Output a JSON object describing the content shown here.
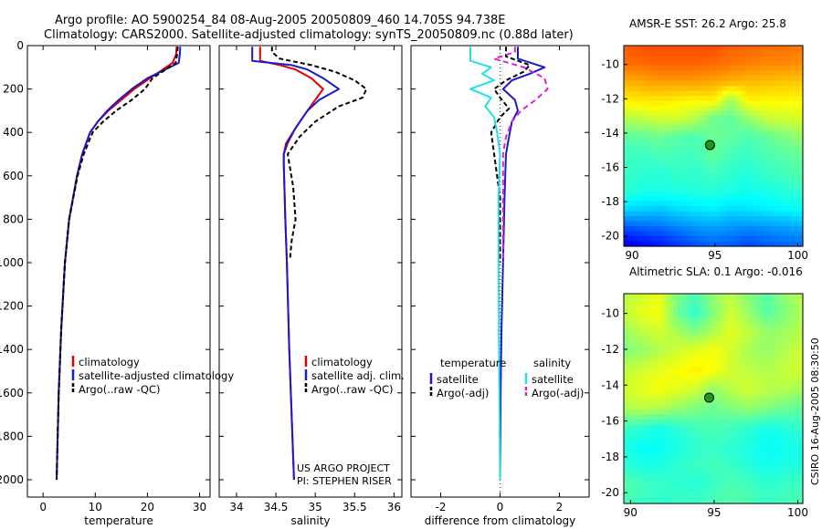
{
  "title": {
    "line1": "Argo profile: AO 5900254_84 08-Aug-2005 20050809_460 14.705S 94.738E",
    "line2": "Climatology: CARS2000. Satellite-adjusted climatology: synTS_20050809.nc (0.88d later)"
  },
  "stamp": "CSIRO 16-Aug-2005 08:30:50",
  "colors": {
    "climatology": "#e00000",
    "satellite": "#1a1acc",
    "argo": "#000000",
    "sal_satellite": "#22e0e8",
    "sal_argo": "#e020d0"
  },
  "chart_data": [
    {
      "type": "line",
      "name": "temperature",
      "xlabel": "temperature",
      "xlim": [
        -3,
        32
      ],
      "ylim": [
        2080,
        0
      ],
      "xticks": [
        "0",
        "10",
        "20",
        "30"
      ],
      "xtick_values": [
        0,
        10,
        20,
        30
      ],
      "yticks": [
        "0",
        "200",
        "400",
        "600",
        "800",
        "1000",
        "1200",
        "1400",
        "1600",
        "1800",
        "2000"
      ],
      "ytick_values": [
        0,
        200,
        400,
        600,
        800,
        1000,
        1200,
        1400,
        1600,
        1800,
        2000
      ],
      "legend": [
        "climatology",
        "satellite-adjusted climatology",
        "Argo(..raw -QC)"
      ],
      "series": [
        {
          "name": "climatology",
          "color": "#e00000",
          "dash": "",
          "x": [
            25.6,
            25.5,
            24.8,
            20.5,
            17.5,
            15.0,
            12.5,
            10.5,
            9.0,
            7.5,
            6.5,
            5.0,
            4.2,
            3.5,
            3.0,
            2.6
          ],
          "y": [
            5,
            40,
            80,
            150,
            200,
            250,
            300,
            350,
            400,
            500,
            600,
            800,
            1000,
            1300,
            1600,
            2000
          ]
        },
        {
          "name": "satellite-adjusted climatology",
          "color": "#1a1acc",
          "dash": "",
          "x": [
            26.3,
            26.2,
            26.0,
            20.0,
            17.0,
            14.5,
            12.3,
            10.5,
            9.0,
            7.5,
            6.5,
            5.0,
            4.2,
            3.5,
            3.0,
            2.6
          ],
          "y": [
            5,
            40,
            80,
            150,
            200,
            250,
            300,
            350,
            400,
            500,
            600,
            800,
            1000,
            1300,
            1600,
            2000
          ]
        },
        {
          "name": "Argo(..raw -QC)",
          "color": "#000000",
          "dash": "5,3",
          "x": [
            25.8,
            25.7,
            25.4,
            21.0,
            19.5,
            17.0,
            14.0,
            11.5,
            9.5,
            7.8,
            6.6,
            5.0,
            4.2,
            3.5,
            3.0,
            2.6
          ],
          "y": [
            5,
            40,
            80,
            150,
            200,
            250,
            300,
            350,
            400,
            500,
            600,
            800,
            1000,
            1300,
            1600,
            2000
          ]
        }
      ]
    },
    {
      "type": "line",
      "name": "salinity",
      "xlabel": "salinity",
      "xlim": [
        33.78,
        36.1
      ],
      "ylim": [
        2080,
        0
      ],
      "xticks": [
        "34",
        "34.5",
        "35",
        "35.5",
        "36"
      ],
      "xtick_values": [
        34,
        34.5,
        35,
        35.5,
        36
      ],
      "legend": [
        "climatology",
        "satellite adj. clim.",
        "Argo(..raw -QC)"
      ],
      "annotation": [
        "US ARGO PROJECT",
        "PI: STEPHEN RISER"
      ],
      "series": [
        {
          "name": "climatology",
          "color": "#e00000",
          "dash": "",
          "x": [
            34.3,
            34.3,
            34.55,
            34.75,
            34.95,
            35.1,
            35.0,
            34.9,
            34.75,
            34.65,
            34.6,
            34.6,
            34.62,
            34.64,
            34.67,
            34.7,
            34.73
          ],
          "y": [
            5,
            70,
            90,
            110,
            150,
            200,
            250,
            300,
            380,
            450,
            500,
            550,
            800,
            1000,
            1400,
            1700,
            2000
          ]
        },
        {
          "name": "satellite adj. clim.",
          "color": "#1a1acc",
          "dash": "",
          "x": [
            34.2,
            34.2,
            34.7,
            34.9,
            35.1,
            35.3,
            35.05,
            34.9,
            34.75,
            34.63,
            34.6,
            34.6,
            34.62,
            34.64,
            34.67,
            34.7,
            34.73
          ],
          "y": [
            5,
            70,
            90,
            110,
            150,
            200,
            250,
            300,
            380,
            450,
            500,
            550,
            800,
            1000,
            1400,
            1700,
            2000
          ]
        },
        {
          "name": "Argo(..raw -QC)",
          "color": "#000000",
          "dash": "5,3",
          "x": [
            34.45,
            34.45,
            34.55,
            34.95,
            35.25,
            35.5,
            35.65,
            35.6,
            35.3,
            35.0,
            34.8,
            34.65,
            34.72,
            34.75,
            34.7,
            34.68
          ],
          "y": [
            5,
            30,
            60,
            90,
            120,
            160,
            200,
            240,
            280,
            350,
            420,
            500,
            650,
            800,
            900,
            980
          ]
        }
      ]
    },
    {
      "type": "line",
      "name": "difference",
      "xlabel": "difference from climatology",
      "xlim": [
        -3,
        3
      ],
      "ylim": [
        2080,
        0
      ],
      "xticks": [
        "-2",
        "0",
        "2"
      ],
      "xtick_values": [
        -2,
        0,
        2
      ],
      "legend_left_title": "temperature",
      "legend_right_title": "salinity",
      "legend": [
        "satellite",
        "Argo(-adj)",
        "satellite",
        "Argo(-adj)"
      ],
      "series": [
        {
          "name": "temperature satellite",
          "color": "#1a1acc",
          "dash": "",
          "x": [
            0.6,
            0.6,
            1.5,
            1.0,
            0.4,
            0.1,
            0.5,
            0.6,
            0.4,
            0.3,
            0.2,
            0.15,
            0.1,
            0.05,
            0.02,
            0.0
          ],
          "y": [
            5,
            60,
            100,
            130,
            160,
            200,
            250,
            300,
            350,
            420,
            500,
            700,
            1000,
            1300,
            1600,
            2000
          ]
        },
        {
          "name": "temperature Argo(-adj)",
          "color": "#000000",
          "dash": "5,3",
          "x": [
            0.2,
            0.2,
            1.0,
            0.8,
            0.2,
            -0.2,
            0.0,
            0.3,
            0.0,
            -0.3,
            -0.2,
            0.0,
            0.0,
            0.0
          ],
          "y": [
            5,
            50,
            90,
            120,
            160,
            200,
            240,
            290,
            330,
            400,
            500,
            700,
            900,
            1000
          ]
        },
        {
          "name": "salinity satellite",
          "color": "#22e0e8",
          "dash": "",
          "x": [
            -1.0,
            -1.0,
            -0.3,
            -0.6,
            -0.2,
            -1.0,
            -0.3,
            -0.5,
            -0.2,
            -0.1,
            0.0,
            -0.05,
            -0.05,
            -0.03,
            0.0
          ],
          "y": [
            5,
            70,
            100,
            130,
            160,
            200,
            240,
            280,
            330,
            400,
            500,
            700,
            1000,
            1500,
            2000
          ]
        },
        {
          "name": "salinity Argo(-adj)",
          "color": "#e020d0",
          "dash": "6,4",
          "x": [
            0.5,
            0.5,
            -0.2,
            0.8,
            1.5,
            1.6,
            1.2,
            0.7,
            0.4,
            0.2,
            0.1,
            0.1,
            0.1
          ],
          "y": [
            5,
            30,
            60,
            100,
            150,
            200,
            250,
            300,
            350,
            420,
            500,
            700,
            1000
          ]
        }
      ]
    },
    {
      "type": "heatmap",
      "name": "amsr-sst",
      "title": "AMSR-E SST: 26.2 Argo: 25.8",
      "xlim": [
        89.5,
        100.3
      ],
      "ylim": [
        -20.6,
        -8.9
      ],
      "xticks": [
        "90",
        "95",
        "100"
      ],
      "xtick_values": [
        90,
        95,
        100
      ],
      "yticks": [
        "-10",
        "-12",
        "-14",
        "-16",
        "-18",
        "-20"
      ],
      "ytick_values": [
        -10,
        -12,
        -14,
        -16,
        -18,
        -20
      ],
      "marker": {
        "lon": 94.7,
        "lat": -14.7
      },
      "colormap": "jet",
      "row_lats": [
        -9,
        -10,
        -11,
        -12,
        -13,
        -14,
        -15,
        -16,
        -17,
        -18,
        -19,
        -20
      ],
      "grid": [
        [
          0.78,
          0.8,
          0.8,
          0.8,
          0.8,
          0.8,
          0.78,
          0.78,
          0.77,
          0.77,
          0.76
        ],
        [
          0.77,
          0.77,
          0.78,
          0.78,
          0.78,
          0.77,
          0.76,
          0.75,
          0.74,
          0.74,
          0.73
        ],
        [
          0.7,
          0.71,
          0.72,
          0.72,
          0.72,
          0.71,
          0.7,
          0.69,
          0.69,
          0.68,
          0.68
        ],
        [
          0.64,
          0.65,
          0.65,
          0.64,
          0.63,
          0.64,
          0.53,
          0.64,
          0.63,
          0.63,
          0.63
        ],
        [
          0.55,
          0.56,
          0.58,
          0.58,
          0.55,
          0.48,
          0.47,
          0.52,
          0.57,
          0.58,
          0.59
        ],
        [
          0.46,
          0.47,
          0.48,
          0.46,
          0.45,
          0.48,
          0.47,
          0.45,
          0.47,
          0.5,
          0.52
        ],
        [
          0.44,
          0.43,
          0.45,
          0.44,
          0.44,
          0.47,
          0.44,
          0.43,
          0.45,
          0.46,
          0.48
        ],
        [
          0.43,
          0.42,
          0.41,
          0.43,
          0.42,
          0.44,
          0.42,
          0.41,
          0.43,
          0.44,
          0.46
        ],
        [
          0.42,
          0.4,
          0.4,
          0.4,
          0.41,
          0.41,
          0.4,
          0.39,
          0.4,
          0.41,
          0.43
        ],
        [
          0.34,
          0.33,
          0.32,
          0.34,
          0.35,
          0.36,
          0.34,
          0.35,
          0.36,
          0.37,
          0.38
        ],
        [
          0.2,
          0.22,
          0.23,
          0.25,
          0.27,
          0.28,
          0.27,
          0.26,
          0.27,
          0.28,
          0.29
        ],
        [
          0.1,
          0.12,
          0.14,
          0.17,
          0.2,
          0.22,
          0.21,
          0.19,
          0.21,
          0.22,
          0.23
        ]
      ]
    },
    {
      "type": "heatmap",
      "name": "altimetric-sla",
      "title": "Altimetric SLA: 0.1 Argo: -0.016",
      "xlim": [
        89.6,
        100.3
      ],
      "ylim": [
        -20.6,
        -8.9
      ],
      "xticks": [
        "90",
        "95",
        "100"
      ],
      "xtick_values": [
        90,
        95,
        100
      ],
      "yticks": [
        "-10",
        "-12",
        "-14",
        "-16",
        "-18",
        "-20"
      ],
      "ytick_values": [
        -10,
        -12,
        -14,
        -16,
        -18,
        -20
      ],
      "marker": {
        "lon": 94.7,
        "lat": -14.7
      },
      "colormap": "jet",
      "row_lats": [
        -9,
        -10,
        -11,
        -12,
        -13,
        -14,
        -15,
        -16,
        -17,
        -18,
        -19,
        -20
      ],
      "grid": [
        [
          0.55,
          0.58,
          0.6,
          0.5,
          0.45,
          0.52,
          0.56,
          0.5,
          0.46,
          0.52,
          0.56
        ],
        [
          0.56,
          0.6,
          0.62,
          0.48,
          0.42,
          0.5,
          0.58,
          0.52,
          0.46,
          0.5,
          0.55
        ],
        [
          0.52,
          0.56,
          0.58,
          0.54,
          0.5,
          0.55,
          0.6,
          0.56,
          0.52,
          0.53,
          0.56
        ],
        [
          0.5,
          0.52,
          0.55,
          0.58,
          0.6,
          0.62,
          0.58,
          0.54,
          0.52,
          0.55,
          0.58
        ],
        [
          0.56,
          0.58,
          0.6,
          0.62,
          0.64,
          0.62,
          0.58,
          0.56,
          0.55,
          0.57,
          0.58
        ],
        [
          0.58,
          0.6,
          0.62,
          0.6,
          0.58,
          0.52,
          0.56,
          0.58,
          0.56,
          0.55,
          0.54
        ],
        [
          0.54,
          0.56,
          0.55,
          0.52,
          0.5,
          0.48,
          0.5,
          0.52,
          0.5,
          0.48,
          0.47
        ],
        [
          0.44,
          0.42,
          0.4,
          0.42,
          0.44,
          0.45,
          0.44,
          0.42,
          0.4,
          0.41,
          0.43
        ],
        [
          0.4,
          0.38,
          0.38,
          0.4,
          0.42,
          0.43,
          0.42,
          0.4,
          0.38,
          0.39,
          0.4
        ],
        [
          0.42,
          0.4,
          0.4,
          0.42,
          0.43,
          0.44,
          0.43,
          0.41,
          0.39,
          0.4,
          0.41
        ],
        [
          0.46,
          0.44,
          0.43,
          0.42,
          0.41,
          0.43,
          0.45,
          0.44,
          0.42,
          0.43,
          0.44
        ],
        [
          0.45,
          0.43,
          0.42,
          0.43,
          0.44,
          0.45,
          0.46,
          0.45,
          0.43,
          0.44,
          0.45
        ]
      ]
    }
  ]
}
